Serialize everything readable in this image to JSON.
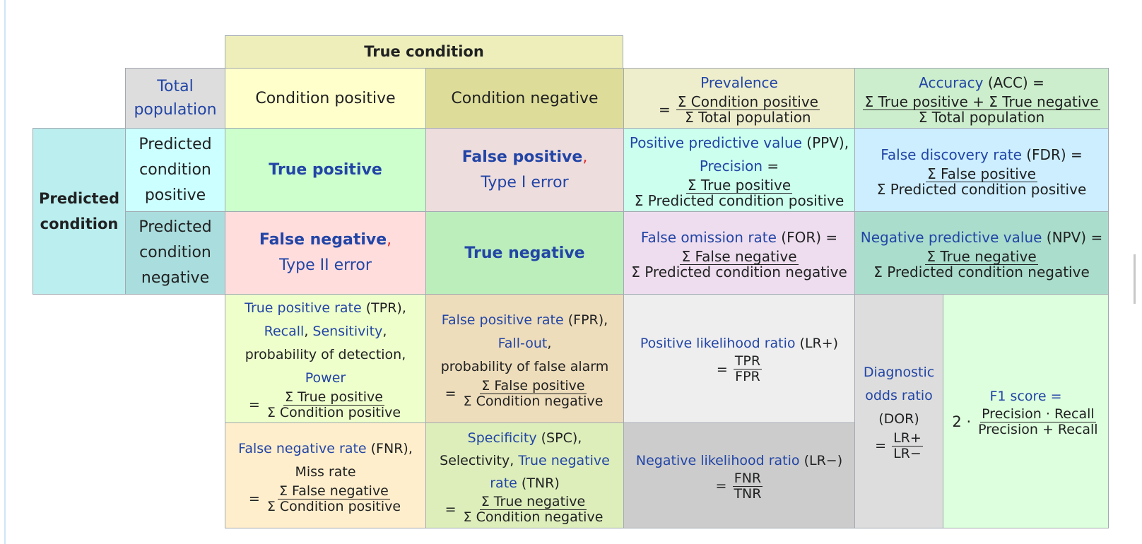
{
  "header": {
    "true_condition": "True condition",
    "predicted_condition": "Predicted condition"
  },
  "top_row": {
    "total_population": "Total population",
    "condition_positive": "Condition positive",
    "condition_negative": "Condition negative",
    "prevalence": {
      "label": "Prevalence",
      "sign": "=",
      "num": "Σ Condition positive",
      "den": "Σ Total population"
    },
    "accuracy": {
      "label": "Accuracy",
      "rest": " (ACC) =",
      "num": "Σ True positive + Σ True negative",
      "den": "Σ Total population"
    }
  },
  "row_positive": {
    "label": "Predicted condition positive",
    "true_positive": "True positive",
    "false_positive": "False positive",
    "comma": ",",
    "type1": "Type I error",
    "ppv": {
      "label": "Positive predictive value",
      "rest": " (PPV),",
      "label2": "Precision",
      "eq": " =",
      "num": "Σ True positive",
      "den": "Σ Predicted condition positive"
    },
    "fdr": {
      "label": "False discovery rate",
      "rest": " (FDR) =",
      "num": "Σ False positive",
      "den": "Σ Predicted condition positive"
    }
  },
  "row_negative": {
    "label": "Predicted condition negative",
    "false_negative": "False negative",
    "comma": ",",
    "type2": "Type II error",
    "true_negative": "True negative",
    "for": {
      "label": "False omission rate",
      "rest": " (FOR) =",
      "num": "Σ False negative",
      "den": "Σ Predicted condition negative"
    },
    "npv": {
      "label": "Negative predictive value",
      "rest": " (NPV) =",
      "num": "Σ True negative",
      "den": "Σ Predicted condition negative"
    }
  },
  "rates": {
    "tpr": {
      "label": "True positive rate",
      "rest": " (TPR),",
      "recall": "Recall",
      "comma": ",",
      "sensitivity": "Sensitivity",
      "comma2": ",",
      "detection": "probability of detection,",
      "power": "Power",
      "sign": "=",
      "num": "Σ True positive",
      "den": "Σ Condition positive"
    },
    "fpr": {
      "label": "False positive rate",
      "rest": " (FPR),",
      "fallout": "Fall-out",
      "comma": ",",
      "alarm": "probability of false alarm",
      "sign": "=",
      "num": "Σ False positive",
      "den": "Σ Condition negative"
    },
    "lr_pos": {
      "label": "Positive likelihood ratio",
      "rest": " (LR+)",
      "sign": "=",
      "num": "TPR",
      "den": "FPR"
    },
    "fnr": {
      "label": "False negative rate",
      "rest": " (FNR),",
      "miss": "Miss rate",
      "sign": "=",
      "num": "Σ False negative",
      "den": "Σ Condition positive"
    },
    "spc": {
      "label": "Specificity",
      "rest": " (SPC),",
      "selectivity": "Selectivity, ",
      "tnr1": "True negative",
      "tnr2": "rate",
      "rest2": " (TNR)",
      "sign": "=",
      "num": "Σ True negative",
      "den": "Σ Condition negative"
    },
    "lr_neg": {
      "label": "Negative likelihood ratio",
      "rest": " (LR−)",
      "sign": "=",
      "num": "FNR",
      "den": "TNR"
    },
    "dor": {
      "label1": "Diagnostic",
      "label2": "odds ratio",
      "abbr": "(DOR)",
      "sign": "=",
      "num": "LR+",
      "den": "LR−"
    },
    "f1": {
      "label": "F",
      "sub": "1",
      "label_rest": " score",
      "eq": " =",
      "coef": "2 ·",
      "num": "Precision · Recall",
      "den": "Precision + Recall"
    }
  },
  "colors": {
    "true_condition_header": "#eeeebb",
    "total_population": "#dddddd",
    "condition_positive": "#ffffcc",
    "condition_negative": "#dddd99",
    "predicted_condition": "#bbeeee",
    "predicted_positive": "#ccffff",
    "predicted_negative": "#aadddd",
    "true_positive": "#ccffcc",
    "false_positive": "#eedddd",
    "false_negative": "#ffdddd",
    "true_negative": "#bbeebb",
    "prevalence": "#eeeecc",
    "accuracy": "#cceecc",
    "ppv": "#ccffee",
    "fdr": "#cceeff",
    "for": "#eeddee",
    "npv": "#aaddcc",
    "tpr": "#eeffcc",
    "fpr": "#eeddbb",
    "lr_pos": "#eeeeee",
    "fnr": "#ffeecc",
    "spc": "#ddeebb",
    "lr_neg": "#cccccc",
    "dor": "#dddddd",
    "f1": "#ddffdd",
    "link": "#2245a6"
  }
}
